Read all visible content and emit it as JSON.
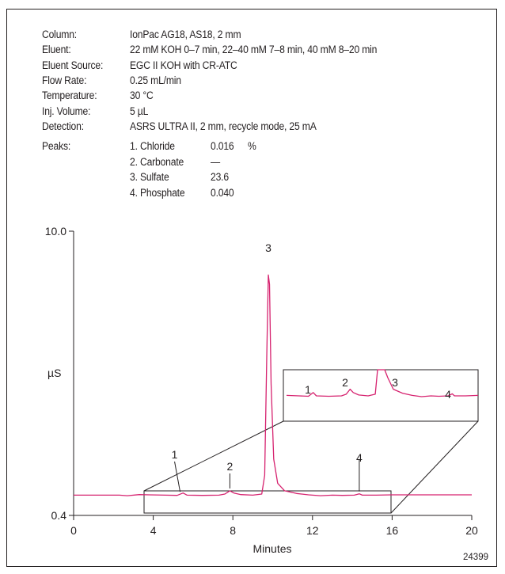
{
  "conditions": [
    {
      "label": "Column:",
      "value": "IonPac AG18, AS18, 2 mm"
    },
    {
      "label": "Eluent:",
      "value": "22 mM KOH 0–7 min, 22–40 mM 7–8 min, 40 mM 8–20 min"
    },
    {
      "label": "Eluent Source:",
      "value": "EGC II KOH with CR-ATC"
    },
    {
      "label": "Flow Rate:",
      "value": "0.25 mL/min"
    },
    {
      "label": "Temperature:",
      "value": "30 °C"
    },
    {
      "label": "Inj. Volume:",
      "value": "5 µL"
    },
    {
      "label": "Detection:",
      "value": "ASRS ULTRA II, 2 mm, recycle mode, 25 mA"
    }
  ],
  "peaks_label": "Peaks:",
  "peaks": [
    {
      "name": "1. Chloride",
      "value": "0.016",
      "unit": "%"
    },
    {
      "name": "2. Carbonate",
      "value": "—",
      "unit": ""
    },
    {
      "name": "3. Sulfate",
      "value": "23.6",
      "unit": ""
    },
    {
      "name": "4. Phosphate",
      "value": "0.040",
      "unit": ""
    }
  ],
  "figure_id": "24399",
  "chart_data": {
    "type": "line",
    "xlabel": "Minutes",
    "ylabel": "µS",
    "xlim": [
      0,
      20
    ],
    "ylim": [
      0.4,
      10.0
    ],
    "x_ticks": [
      "0",
      "4",
      "8",
      "12",
      "16",
      "20"
    ],
    "x_tick_values": [
      0,
      4,
      8,
      12,
      16,
      20
    ],
    "y_ticks": [
      "10.0",
      "0.4"
    ],
    "y_tick_values": [
      10.0,
      0.4
    ],
    "line_color": "#d6226f",
    "series": [
      {
        "points": [
          [
            0,
            0.86
          ],
          [
            2.3,
            0.86
          ],
          [
            2.7,
            0.84
          ],
          [
            3.3,
            0.88
          ],
          [
            3.8,
            0.87
          ],
          [
            4.6,
            0.86
          ],
          [
            5.2,
            0.85
          ],
          [
            5.5,
            0.94
          ],
          [
            5.7,
            0.86
          ],
          [
            6.5,
            0.85
          ],
          [
            7.3,
            0.86
          ],
          [
            7.6,
            0.9
          ],
          [
            7.85,
            1.02
          ],
          [
            8.05,
            0.94
          ],
          [
            8.4,
            0.88
          ],
          [
            9.0,
            0.86
          ],
          [
            9.45,
            0.9
          ],
          [
            9.6,
            1.6
          ],
          [
            9.7,
            6.0
          ],
          [
            9.78,
            9.05
          ],
          [
            9.84,
            8.7
          ],
          [
            9.92,
            5.0
          ],
          [
            10.05,
            2.2
          ],
          [
            10.25,
            1.3
          ],
          [
            10.6,
            1.02
          ],
          [
            11.2,
            0.92
          ],
          [
            11.8,
            0.87
          ],
          [
            12.4,
            0.84
          ],
          [
            13.0,
            0.86
          ],
          [
            13.5,
            0.85
          ],
          [
            14.1,
            0.86
          ],
          [
            14.35,
            0.91
          ],
          [
            14.5,
            0.86
          ],
          [
            15.2,
            0.86
          ],
          [
            16.0,
            0.87
          ],
          [
            17.0,
            0.87
          ],
          [
            18.0,
            0.87
          ],
          [
            19.0,
            0.87
          ],
          [
            20.0,
            0.87
          ]
        ]
      }
    ],
    "peak_labels": [
      {
        "label": "1",
        "x": 5.35
      },
      {
        "label": "2",
        "x": 7.85
      },
      {
        "label": "3",
        "x": 9.78
      },
      {
        "label": "4",
        "x": 14.35
      }
    ],
    "inset": {
      "x_range": [
        3.6,
        16
      ],
      "y_range": [
        0.4,
        1.6
      ],
      "peak_labels": [
        "1",
        "2",
        "3",
        "4"
      ]
    }
  }
}
